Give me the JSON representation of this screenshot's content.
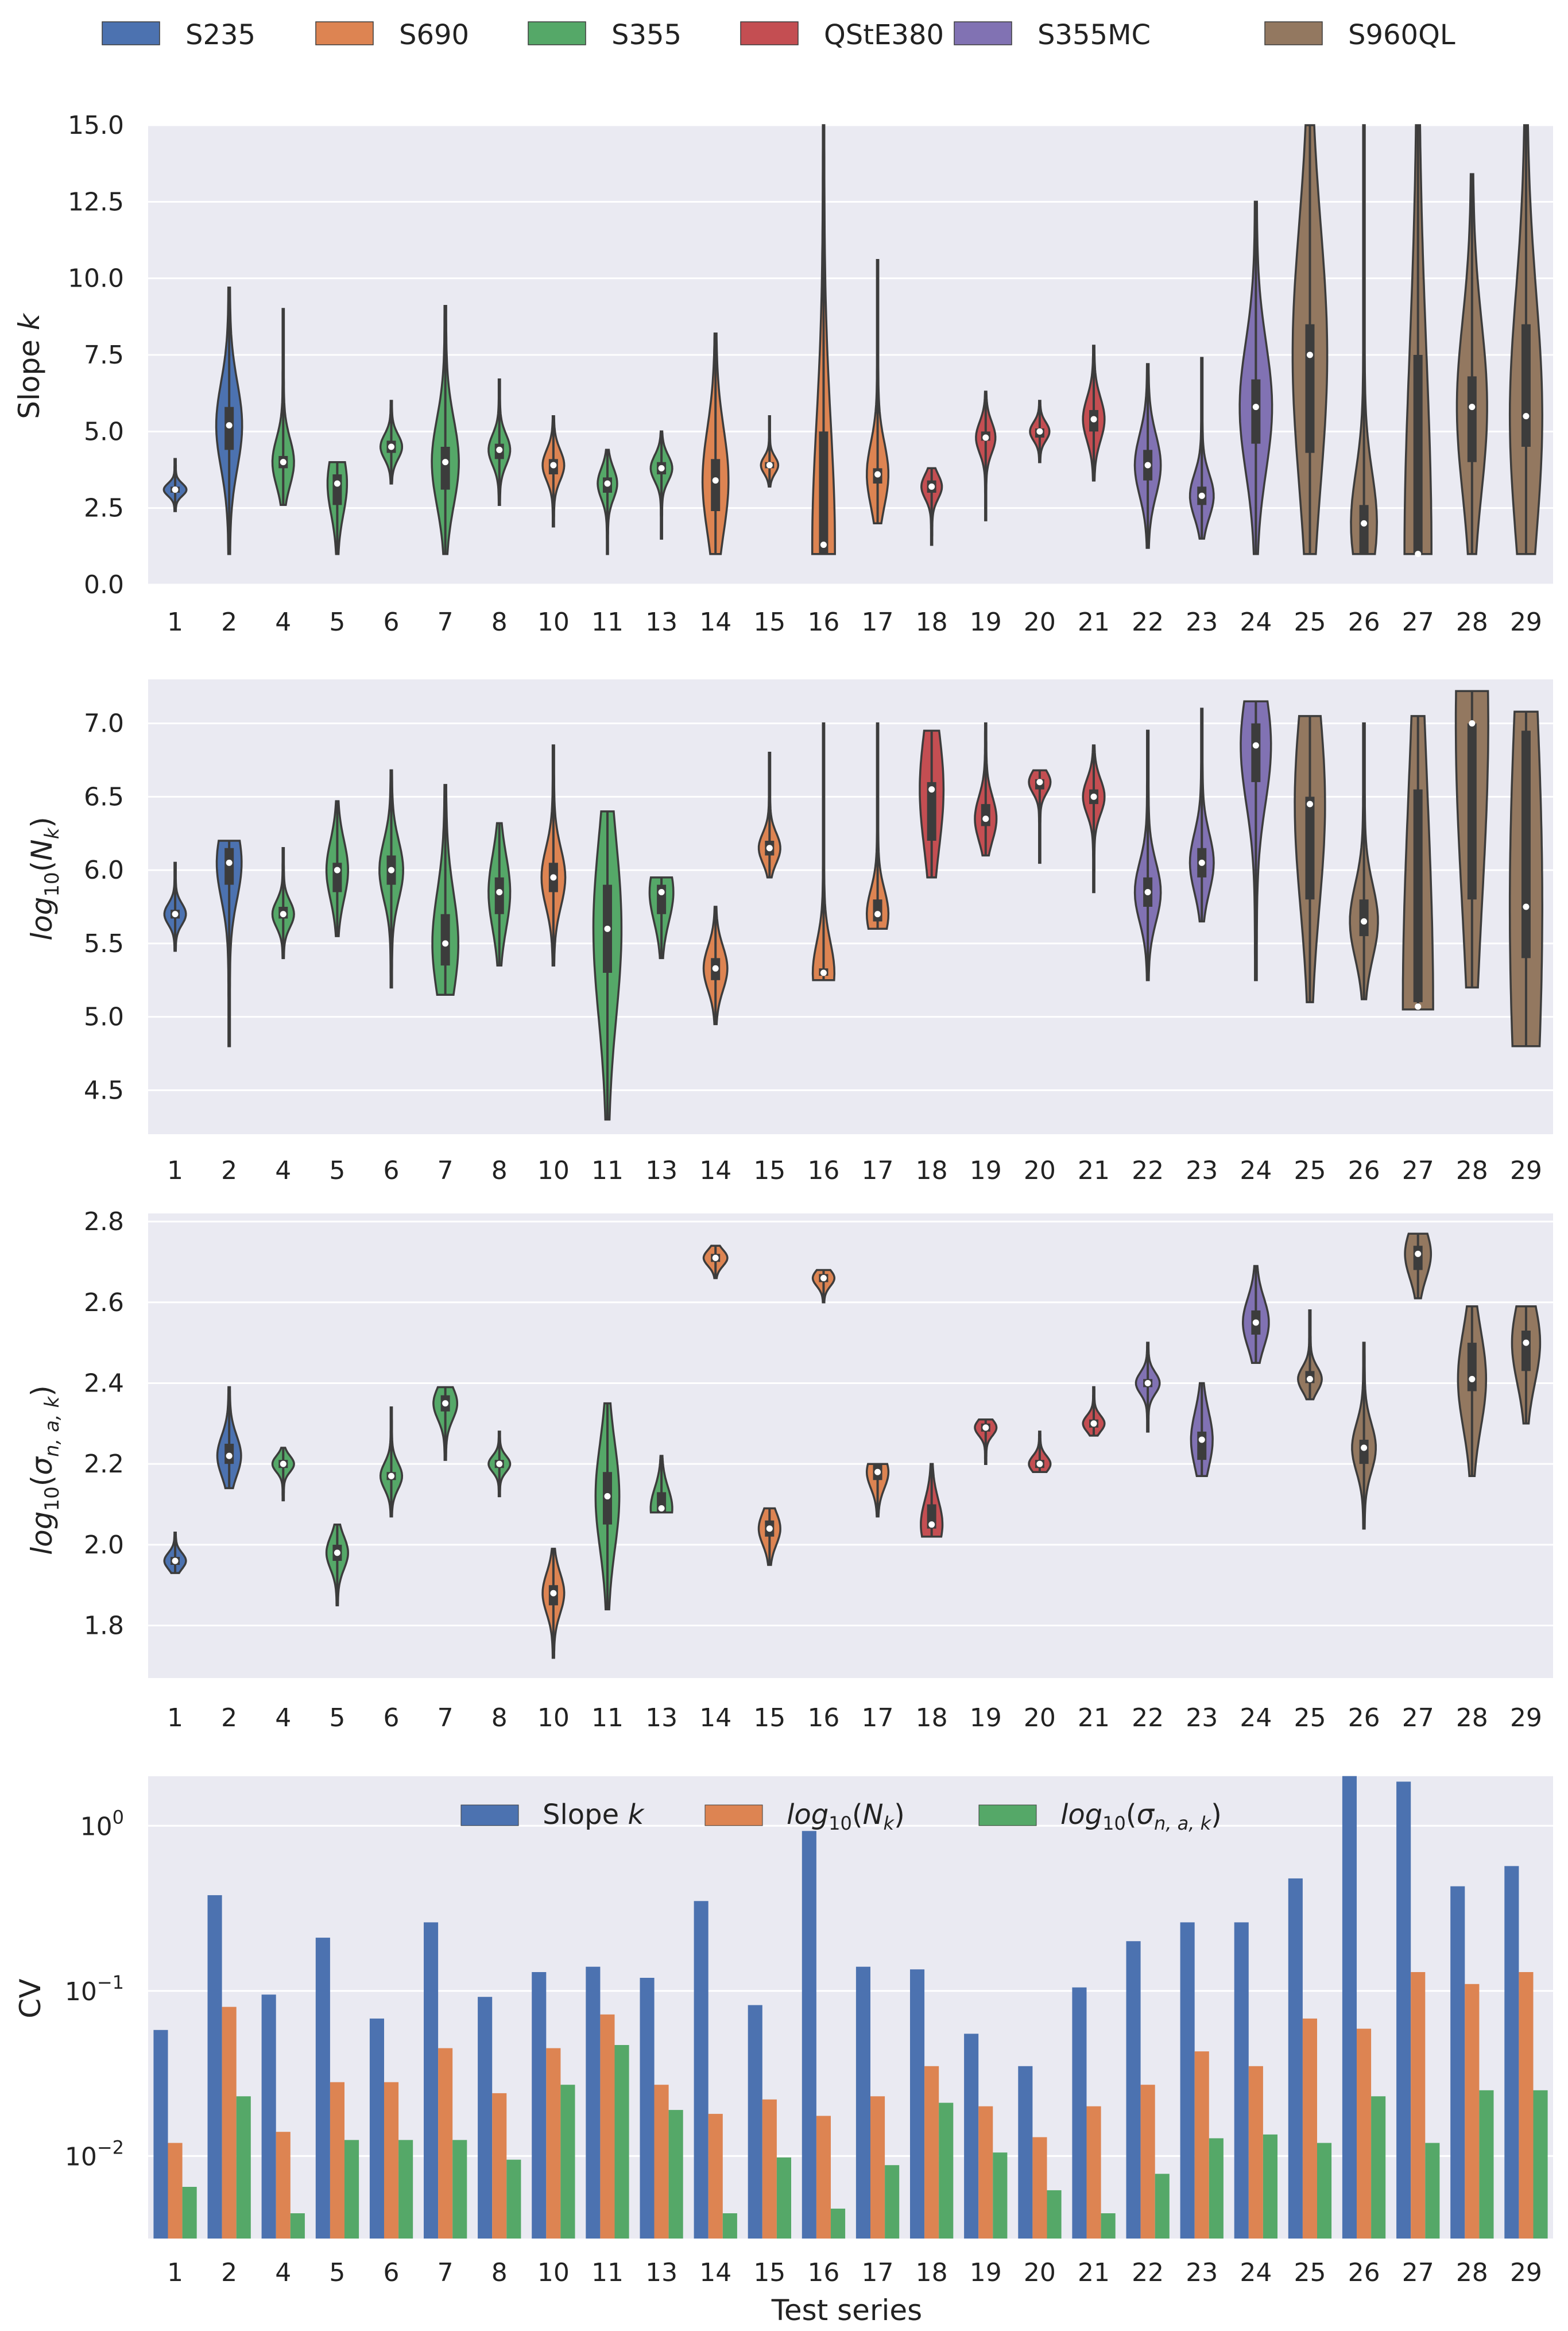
{
  "legend": {
    "materials": [
      {
        "name": "S235",
        "color": "#4c72b0"
      },
      {
        "name": "S690",
        "color": "#dd8452"
      },
      {
        "name": "S355",
        "color": "#55a868"
      },
      {
        "name": "QStE380",
        "color": "#c44e52"
      },
      {
        "name": "S355MC",
        "color": "#8172b3"
      },
      {
        "name": "S960QL",
        "color": "#937860"
      }
    ]
  },
  "colors": {
    "panel_bg": "#eaeaf2",
    "grid": "#ffffff",
    "outline": "#3c3c3c",
    "slope": "#4c72b0",
    "logN": "#dd8452",
    "logS": "#55a868"
  },
  "chart_data": [
    {
      "type": "violin",
      "ylabel": "Slope k",
      "ylim": [
        0,
        15
      ],
      "yticks": [
        "0.0",
        "2.5",
        "5.0",
        "7.5",
        "10.0",
        "12.5",
        "15.0"
      ],
      "categories": [
        "1",
        "2",
        "4",
        "5",
        "6",
        "7",
        "8",
        "10",
        "11",
        "13",
        "14",
        "15",
        "16",
        "17",
        "18",
        "19",
        "20",
        "21",
        "22",
        "23",
        "24",
        "25",
        "26",
        "27",
        "28",
        "29"
      ],
      "materials": [
        "S235",
        "S235",
        "S355",
        "S355",
        "S355",
        "S355",
        "S355",
        "S690",
        "S355",
        "S355",
        "S690",
        "S690",
        "S690",
        "S690",
        "QStE380",
        "QStE380",
        "QStE380",
        "QStE380",
        "S355MC",
        "S355MC",
        "S355MC",
        "S960QL",
        "S960QL",
        "S960QL",
        "S960QL",
        "S960QL"
      ],
      "medians": [
        3.1,
        5.2,
        4.0,
        3.3,
        4.5,
        4.0,
        4.4,
        3.9,
        3.3,
        3.8,
        3.4,
        3.9,
        1.3,
        3.6,
        3.2,
        4.8,
        5.0,
        5.4,
        3.9,
        2.9,
        5.8,
        7.5,
        2.0,
        1.0,
        5.8,
        5.5
      ],
      "min": [
        2.4,
        1.0,
        2.6,
        1.0,
        3.3,
        1.0,
        2.6,
        1.9,
        1.0,
        1.5,
        1.0,
        3.2,
        1.0,
        2.0,
        1.3,
        2.1,
        4.0,
        3.4,
        1.2,
        1.5,
        1.0,
        1.0,
        1.0,
        1.0,
        1.0,
        1.0
      ],
      "max": [
        4.1,
        9.7,
        9.0,
        4.0,
        6.0,
        9.1,
        6.7,
        5.5,
        4.4,
        5.0,
        8.2,
        5.5,
        15.0,
        10.6,
        3.8,
        6.3,
        6.0,
        7.8,
        7.2,
        7.4,
        12.5,
        15.0,
        15.0,
        15.0,
        13.4,
        15.0
      ],
      "max_half_width": [
        0.21,
        0.24,
        0.2,
        0.18,
        0.2,
        0.25,
        0.2,
        0.2,
        0.18,
        0.2,
        0.24,
        0.16,
        0.21,
        0.2,
        0.19,
        0.18,
        0.18,
        0.2,
        0.24,
        0.22,
        0.3,
        0.32,
        0.24,
        0.25,
        0.28,
        0.3
      ],
      "q1": [
        3.0,
        4.4,
        3.8,
        2.6,
        4.3,
        3.1,
        4.1,
        3.6,
        3.0,
        3.6,
        2.4,
        3.8,
        1.0,
        3.3,
        3.0,
        4.7,
        4.8,
        5.0,
        3.4,
        2.6,
        4.6,
        4.3,
        1.0,
        1.0,
        4.0,
        4.5
      ],
      "q3": [
        3.2,
        5.8,
        4.2,
        3.6,
        4.7,
        4.5,
        4.6,
        4.1,
        3.5,
        4.0,
        4.1,
        4.0,
        5.0,
        3.8,
        3.4,
        5.0,
        5.1,
        5.7,
        4.4,
        3.2,
        6.7,
        8.5,
        2.6,
        7.5,
        6.8,
        8.5
      ]
    },
    {
      "type": "violin",
      "ylabel": "log10(Nk)",
      "ylim": [
        4.2,
        7.3
      ],
      "yticks": [
        "4.5",
        "5.0",
        "5.5",
        "6.0",
        "6.5",
        "7.0"
      ],
      "categories": [
        "1",
        "2",
        "4",
        "5",
        "6",
        "7",
        "8",
        "10",
        "11",
        "13",
        "14",
        "15",
        "16",
        "17",
        "18",
        "19",
        "20",
        "21",
        "22",
        "23",
        "24",
        "25",
        "26",
        "27",
        "28",
        "29"
      ],
      "medians": [
        5.7,
        6.05,
        5.7,
        6.0,
        6.0,
        5.5,
        5.85,
        5.95,
        5.6,
        5.85,
        5.33,
        6.15,
        5.3,
        5.7,
        6.55,
        6.35,
        6.6,
        6.5,
        5.85,
        6.05,
        6.85,
        6.45,
        5.65,
        5.07,
        7.0,
        5.75
      ],
      "min": [
        5.45,
        4.8,
        5.4,
        5.55,
        5.2,
        5.15,
        5.35,
        5.35,
        4.3,
        5.4,
        4.95,
        5.95,
        5.25,
        5.6,
        5.95,
        6.1,
        6.05,
        5.85,
        5.25,
        5.65,
        5.25,
        5.1,
        5.12,
        5.05,
        5.2,
        4.8
      ],
      "max": [
        6.05,
        6.2,
        6.15,
        6.47,
        6.68,
        6.58,
        6.32,
        6.85,
        6.4,
        5.95,
        5.75,
        6.8,
        7.0,
        7.0,
        6.95,
        7.0,
        6.68,
        6.85,
        6.95,
        7.1,
        7.15,
        7.05,
        7.0,
        7.05,
        7.22,
        7.08
      ],
      "max_half_width": [
        0.2,
        0.23,
        0.2,
        0.2,
        0.22,
        0.24,
        0.2,
        0.22,
        0.26,
        0.22,
        0.22,
        0.2,
        0.2,
        0.2,
        0.22,
        0.2,
        0.2,
        0.2,
        0.24,
        0.22,
        0.28,
        0.28,
        0.26,
        0.28,
        0.3,
        0.3
      ],
      "q1": [
        5.67,
        5.9,
        5.67,
        5.85,
        5.9,
        5.35,
        5.7,
        5.85,
        5.3,
        5.7,
        5.25,
        6.1,
        5.28,
        5.65,
        6.2,
        6.3,
        6.55,
        6.45,
        5.75,
        5.95,
        6.6,
        5.8,
        5.55,
        5.1,
        5.8,
        5.4
      ],
      "q3": [
        5.73,
        6.15,
        5.75,
        6.05,
        6.1,
        5.7,
        5.95,
        6.05,
        5.9,
        5.9,
        5.4,
        6.2,
        5.33,
        5.8,
        6.6,
        6.45,
        6.62,
        6.55,
        5.95,
        6.15,
        7.0,
        6.5,
        5.8,
        6.55,
        7.0,
        6.95
      ]
    },
    {
      "type": "violin",
      "ylabel": "log10(σn,a,k)",
      "ylim": [
        1.67,
        2.82
      ],
      "yticks": [
        "1.8",
        "2.0",
        "2.2",
        "2.4",
        "2.6",
        "2.8"
      ],
      "categories": [
        "1",
        "2",
        "4",
        "5",
        "6",
        "7",
        "8",
        "10",
        "11",
        "13",
        "14",
        "15",
        "16",
        "17",
        "18",
        "19",
        "20",
        "21",
        "22",
        "23",
        "24",
        "25",
        "26",
        "27",
        "28",
        "29"
      ],
      "medians": [
        1.96,
        2.22,
        2.2,
        1.98,
        2.17,
        2.35,
        2.2,
        1.88,
        2.12,
        2.09,
        2.71,
        2.04,
        2.66,
        2.18,
        2.05,
        2.29,
        2.2,
        2.3,
        2.4,
        2.26,
        2.55,
        2.41,
        2.24,
        2.72,
        2.41,
        2.5
      ],
      "min": [
        1.93,
        2.14,
        2.11,
        1.85,
        2.07,
        2.21,
        2.12,
        1.72,
        1.84,
        2.08,
        2.66,
        1.95,
        2.6,
        2.07,
        2.02,
        2.2,
        2.18,
        2.27,
        2.28,
        2.17,
        2.45,
        2.36,
        2.04,
        2.61,
        2.17,
        2.3
      ],
      "max": [
        2.03,
        2.39,
        2.24,
        2.05,
        2.34,
        2.39,
        2.28,
        1.99,
        2.35,
        2.22,
        2.74,
        2.09,
        2.68,
        2.2,
        2.2,
        2.31,
        2.28,
        2.39,
        2.5,
        2.4,
        2.69,
        2.58,
        2.5,
        2.77,
        2.59,
        2.59
      ],
      "max_half_width": [
        0.2,
        0.22,
        0.2,
        0.2,
        0.2,
        0.22,
        0.2,
        0.2,
        0.22,
        0.2,
        0.22,
        0.2,
        0.2,
        0.2,
        0.2,
        0.2,
        0.2,
        0.2,
        0.22,
        0.2,
        0.24,
        0.22,
        0.22,
        0.24,
        0.26,
        0.26
      ],
      "q1": [
        1.95,
        2.2,
        2.19,
        1.96,
        2.16,
        2.33,
        2.19,
        1.85,
        2.05,
        2.08,
        2.7,
        2.02,
        2.65,
        2.16,
        2.04,
        2.28,
        2.19,
        2.29,
        2.39,
        2.21,
        2.52,
        2.4,
        2.2,
        2.68,
        2.38,
        2.43
      ],
      "q3": [
        1.97,
        2.25,
        2.21,
        2.0,
        2.18,
        2.37,
        2.21,
        1.9,
        2.18,
        2.13,
        2.72,
        2.06,
        2.67,
        2.2,
        2.1,
        2.3,
        2.21,
        2.31,
        2.41,
        2.28,
        2.58,
        2.43,
        2.26,
        2.74,
        2.5,
        2.53
      ]
    },
    {
      "type": "bar",
      "ylabel": "CV",
      "xlabel": "Test series",
      "yscale": "log",
      "ylim_log10": [
        -2.5,
        0.3
      ],
      "yticks": [
        "10^-2",
        "10^-1",
        "10^0"
      ],
      "categories": [
        "1",
        "2",
        "4",
        "5",
        "6",
        "7",
        "8",
        "10",
        "11",
        "13",
        "14",
        "15",
        "16",
        "17",
        "18",
        "19",
        "20",
        "21",
        "22",
        "23",
        "24",
        "25",
        "26",
        "27",
        "28",
        "29"
      ],
      "series": [
        {
          "name": "Slope k",
          "color": "#4c72b0",
          "values": [
            0.058,
            0.38,
            0.095,
            0.21,
            0.068,
            0.26,
            0.092,
            0.13,
            0.14,
            0.12,
            0.35,
            0.082,
            0.93,
            0.14,
            0.135,
            0.055,
            0.035,
            0.105,
            0.2,
            0.26,
            0.26,
            0.48,
            2.0,
            1.85,
            0.43,
            0.57
          ]
        },
        {
          "name": "log10(Nk)",
          "color": "#dd8452",
          "values": [
            0.012,
            0.08,
            0.014,
            0.028,
            0.028,
            0.045,
            0.024,
            0.045,
            0.072,
            0.027,
            0.018,
            0.022,
            0.0175,
            0.023,
            0.035,
            0.02,
            0.013,
            0.02,
            0.027,
            0.043,
            0.035,
            0.068,
            0.059,
            0.13,
            0.11,
            0.13
          ]
        },
        {
          "name": "log10(σn,a,k)",
          "color": "#55a868",
          "values": [
            0.0065,
            0.023,
            0.0045,
            0.0125,
            0.0125,
            0.0125,
            0.0095,
            0.027,
            0.047,
            0.019,
            0.0045,
            0.0098,
            0.0048,
            0.0088,
            0.021,
            0.0105,
            0.0062,
            0.0045,
            0.0078,
            0.0128,
            0.0135,
            0.012,
            0.023,
            0.012,
            0.025,
            0.025
          ]
        }
      ]
    }
  ]
}
